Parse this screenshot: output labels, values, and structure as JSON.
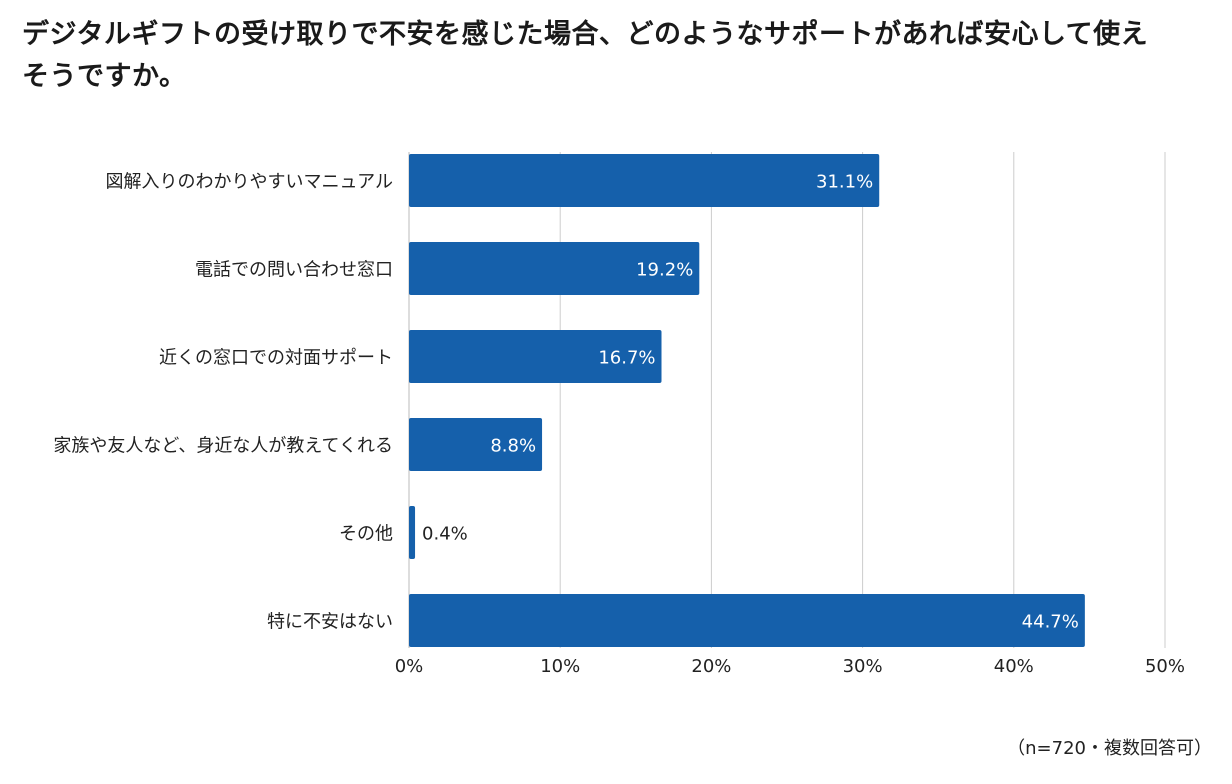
{
  "title": "デジタルギフトの受け取りで不安を感じた場合、どのようなサポートがあれば安心して使えそうですか。",
  "footnote": "（n=720・複数回答可）",
  "colors": {
    "bar": "#1560ab",
    "grid": "#cccccc",
    "label_inside": "#ffffff",
    "label_outside": "#222222"
  },
  "chart_data": {
    "type": "bar",
    "orientation": "horizontal",
    "title": "デジタルギフトの受け取りで不安を感じた場合、どのようなサポートがあれば安心して使えそうですか。",
    "categories": [
      "図解入りのわかりやすいマニュアル",
      "電話での問い合わせ窓口",
      "近くの窓口での対面サポート",
      "家族や友人など、身近な人が教えてくれる",
      "その他",
      "特に不安はない"
    ],
    "values": [
      31.1,
      19.2,
      16.7,
      8.8,
      0.4,
      44.7
    ],
    "value_labels": [
      "31.1%",
      "19.2%",
      "16.7%",
      "8.8%",
      "0.4%",
      "44.7%"
    ],
    "xlim": [
      0,
      50
    ],
    "xticks": [
      0,
      10,
      20,
      30,
      40,
      50
    ],
    "xtick_labels": [
      "0%",
      "10%",
      "20%",
      "30%",
      "40%",
      "50%"
    ],
    "xlabel": "",
    "ylabel": "",
    "grid": true,
    "legend": "none"
  }
}
